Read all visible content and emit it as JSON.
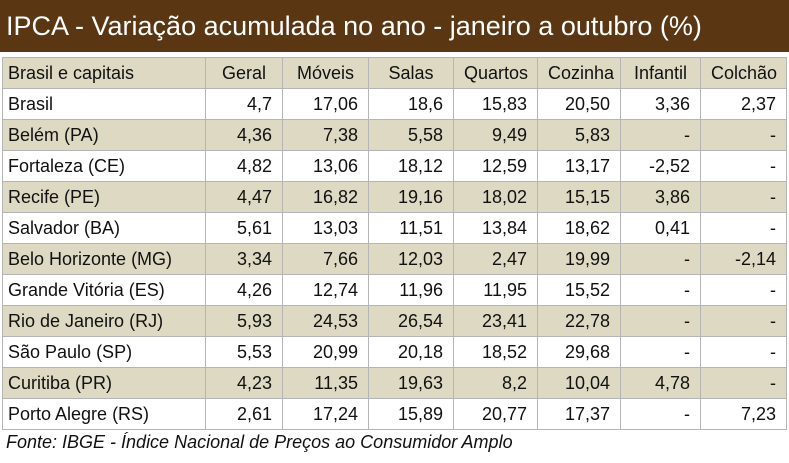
{
  "header": {
    "title": "IPCA - Variação acumulada no ano - janeiro a outubro (%)"
  },
  "table": {
    "columns": [
      "Brasil e capitais",
      "Geral",
      "Móveis",
      "Salas",
      "Quartos",
      "Cozinha",
      "Infantil",
      "Colchão"
    ],
    "rows": [
      [
        "Brasil",
        "4,7",
        "17,06",
        "18,6",
        "15,83",
        "20,50",
        "3,36",
        "2,37"
      ],
      [
        "Belém (PA)",
        "4,36",
        "7,38",
        "5,58",
        "9,49",
        "5,83",
        "-",
        "-"
      ],
      [
        "Fortaleza (CE)",
        "4,82",
        "13,06",
        "18,12",
        "12,59",
        "13,17",
        "-2,52",
        "-"
      ],
      [
        "Recife (PE)",
        "4,47",
        "16,82",
        "19,16",
        "18,02",
        "15,15",
        "3,86",
        "-"
      ],
      [
        "Salvador (BA)",
        "5,61",
        "13,03",
        "11,51",
        "13,84",
        "18,62",
        "0,41",
        "-"
      ],
      [
        "Belo Horizonte (MG)",
        "3,34",
        "7,66",
        "12,03",
        "2,47",
        "19,99",
        "-",
        "-2,14"
      ],
      [
        "Grande Vitória (ES)",
        "4,26",
        "12,74",
        "11,96",
        "11,95",
        "15,52",
        "-",
        "-"
      ],
      [
        "Rio de Janeiro (RJ)",
        "5,93",
        "24,53",
        "26,54",
        "23,41",
        "22,78",
        "-",
        "-"
      ],
      [
        "São Paulo (SP)",
        "5,53",
        "20,99",
        "20,18",
        "18,52",
        "29,68",
        "-",
        "-"
      ],
      [
        "Curitiba (PR)",
        "4,23",
        "11,35",
        "19,63",
        "8,2",
        "10,04",
        "4,78",
        "-"
      ],
      [
        "Porto Alegre (RS)",
        "2,61",
        "17,24",
        "15,89",
        "20,77",
        "17,37",
        "-",
        "7,23"
      ]
    ]
  },
  "footer": {
    "source": "Fonte: IBGE - Índice Nacional de Preços ao Consumidor Amplo"
  }
}
